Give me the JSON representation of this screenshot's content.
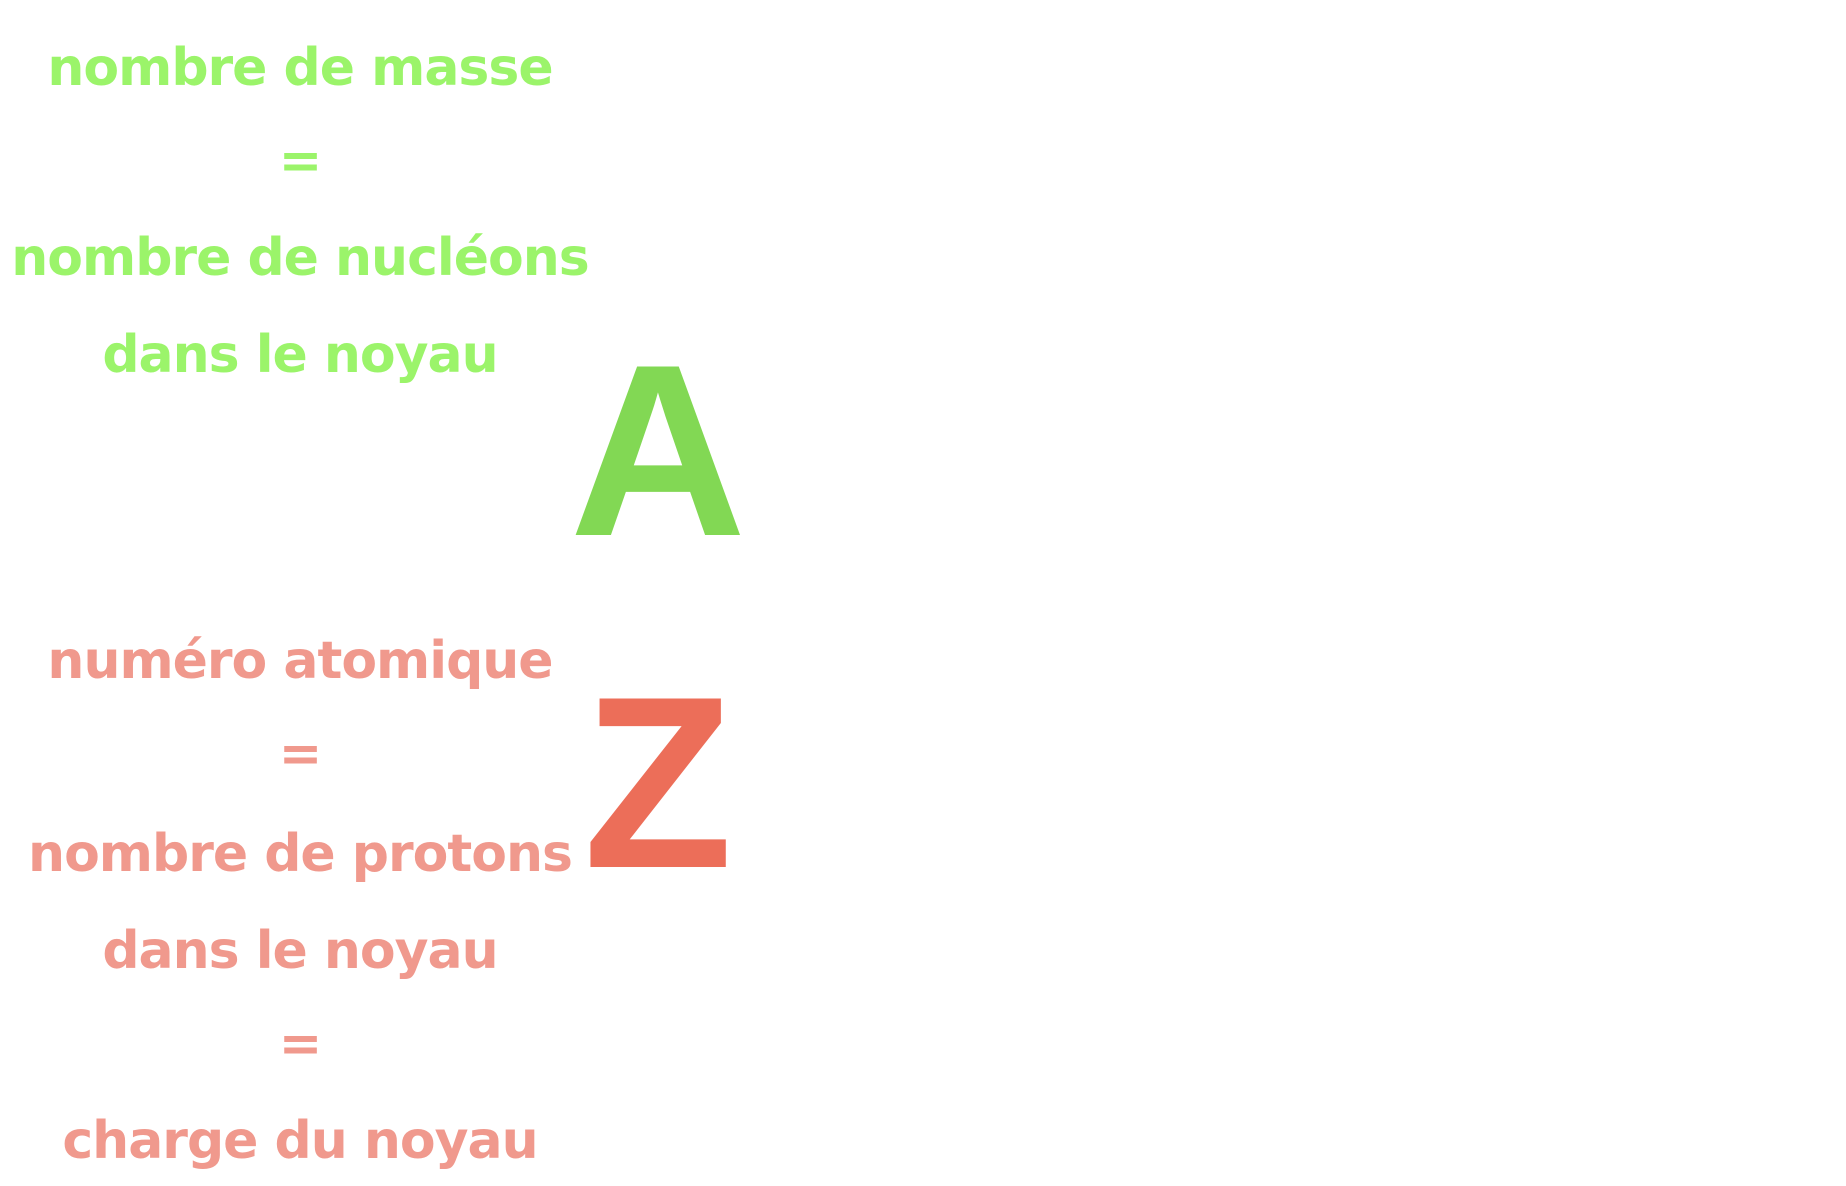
{
  "colors": {
    "green_text": "#9bf46a",
    "green_symbol": "#82d854",
    "red_text": "#f0998d",
    "red_symbol": "#ec6e59"
  },
  "mass_number": {
    "lines": [
      "nombre de masse",
      "=",
      "nombre de nucléons",
      "dans le noyau"
    ],
    "symbol": "A"
  },
  "atomic_number": {
    "lines": [
      "numéro atomique",
      "=",
      "nombre de protons",
      "dans le noyau",
      "=",
      "charge du noyau"
    ],
    "symbol": "Z"
  }
}
